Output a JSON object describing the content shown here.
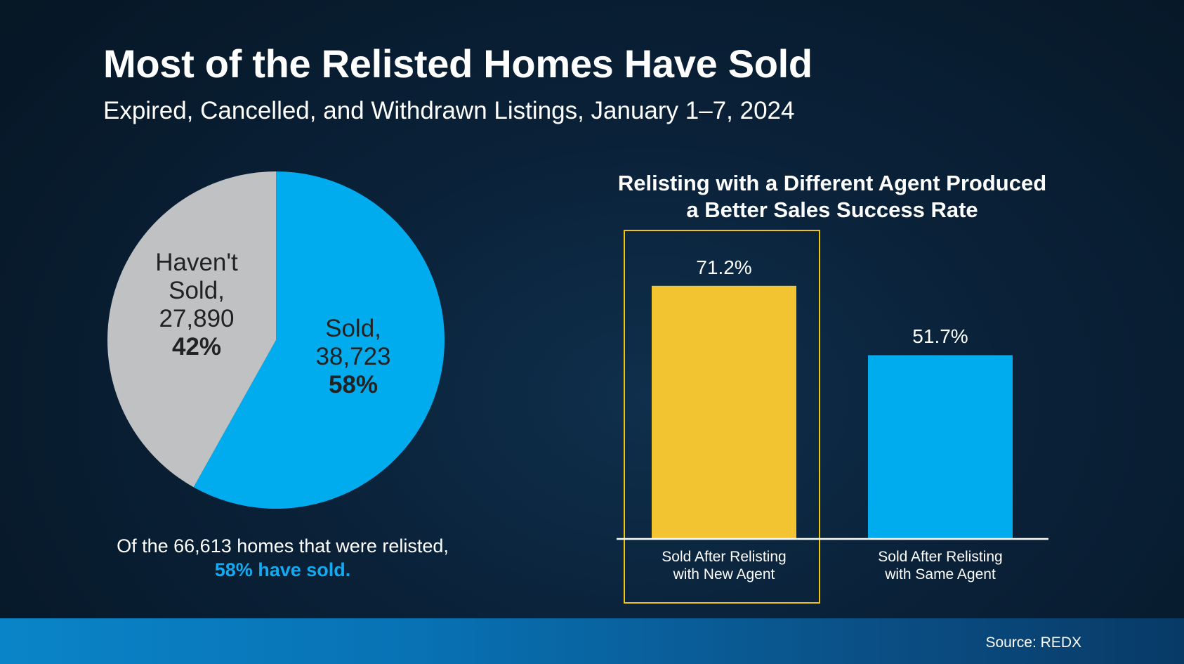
{
  "title": "Most of the Relisted Homes Have Sold",
  "subtitle": "Expired, Cancelled, and Withdrawn Listings, January 1–7, 2024",
  "colors": {
    "sold": "#00aced",
    "unsold": "#bfc1c3",
    "highlight": "#f2c432",
    "accent_text": "#12aaf0",
    "axis": "#ffffff"
  },
  "pie": {
    "sold_label_lines": [
      "Sold,",
      "38,723"
    ],
    "sold_pct": "58%",
    "unsold_label_lines": [
      "Haven't",
      "Sold,",
      "27,890"
    ],
    "unsold_pct": "42%",
    "note_text": "Of the 66,613 homes that were relisted,",
    "note_highlight": "58% have sold."
  },
  "bar": {
    "title_lines": [
      "Relisting with a Different Agent Produced",
      "a Better Sales Success Rate"
    ]
  },
  "source": "Source: REDX",
  "chart_data": [
    {
      "type": "pie",
      "title": "Most of the Relisted Homes Have Sold",
      "slices": [
        {
          "name": "Sold",
          "value": 38723,
          "percent": 58
        },
        {
          "name": "Haven't Sold",
          "value": 27890,
          "percent": 42
        }
      ],
      "total": 66613
    },
    {
      "type": "bar",
      "title": "Relisting with a Different Agent Produced a Better Sales Success Rate",
      "categories": [
        "Sold After Relisting with New Agent",
        "Sold After Relisting with Same Agent"
      ],
      "category_lines": [
        [
          "Sold After Relisting",
          "with New Agent"
        ],
        [
          "Sold After Relisting",
          "with Same Agent"
        ]
      ],
      "values": [
        71.2,
        51.7
      ],
      "value_labels": [
        "71.2%",
        "51.7%"
      ],
      "ylim": [
        0,
        85
      ],
      "grid": false,
      "highlighted_category": 0
    }
  ]
}
